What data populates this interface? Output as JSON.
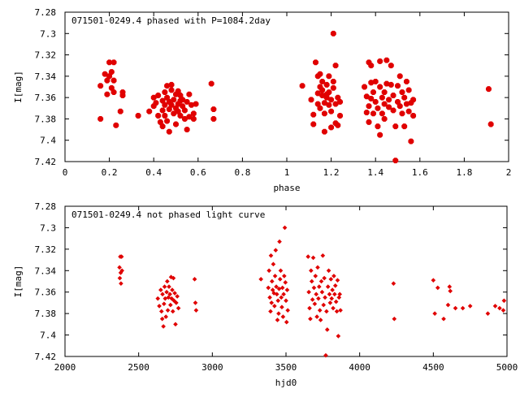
{
  "chart_data": [
    {
      "type": "scatter",
      "title": "071501-0249.4 phased with P=1084.2day",
      "xlabel": "phase",
      "ylabel": "I[mag]",
      "xlim": [
        0,
        2
      ],
      "ylim": [
        7.28,
        7.42
      ],
      "y_inverted": true,
      "x_ticks": [
        "0",
        "0.2",
        "0.4",
        "0.6",
        "0.8",
        "1",
        "1.2",
        "1.4",
        "1.6",
        "1.8",
        "2"
      ],
      "y_ticks": [
        "7.28",
        "7.3",
        "7.32",
        "7.34",
        "7.36",
        "7.38",
        "7.4",
        "7.42"
      ],
      "x_tick_values": [
        0,
        0.2,
        0.4,
        0.6,
        0.8,
        1,
        1.2,
        1.4,
        1.6,
        1.8,
        2
      ],
      "y_tick_values": [
        7.28,
        7.3,
        7.32,
        7.34,
        7.36,
        7.38,
        7.4,
        7.42
      ],
      "marker": "star",
      "color": "#e00000",
      "points": [
        [
          0.16,
          7.349
        ],
        [
          0.16,
          7.38
        ],
        [
          0.18,
          7.338
        ],
        [
          0.19,
          7.357
        ],
        [
          0.19,
          7.344
        ],
        [
          0.2,
          7.327
        ],
        [
          0.2,
          7.34
        ],
        [
          0.21,
          7.336
        ],
        [
          0.21,
          7.351
        ],
        [
          0.22,
          7.327
        ],
        [
          0.22,
          7.344
        ],
        [
          0.22,
          7.355
        ],
        [
          0.23,
          7.386
        ],
        [
          0.25,
          7.373
        ],
        [
          0.26,
          7.355
        ],
        [
          0.26,
          7.358
        ],
        [
          0.33,
          7.377
        ],
        [
          0.38,
          7.373
        ],
        [
          0.4,
          7.368
        ],
        [
          0.4,
          7.36
        ],
        [
          0.41,
          7.365
        ],
        [
          0.42,
          7.377
        ],
        [
          0.42,
          7.358
        ],
        [
          0.43,
          7.383
        ],
        [
          0.44,
          7.363
        ],
        [
          0.44,
          7.372
        ],
        [
          0.44,
          7.387
        ],
        [
          0.45,
          7.355
        ],
        [
          0.45,
          7.367
        ],
        [
          0.45,
          7.377
        ],
        [
          0.46,
          7.349
        ],
        [
          0.46,
          7.36
        ],
        [
          0.46,
          7.382
        ],
        [
          0.47,
          7.392
        ],
        [
          0.47,
          7.371
        ],
        [
          0.47,
          7.364
        ],
        [
          0.48,
          7.353
        ],
        [
          0.48,
          7.348
        ],
        [
          0.48,
          7.367
        ],
        [
          0.49,
          7.375
        ],
        [
          0.49,
          7.362
        ],
        [
          0.5,
          7.357
        ],
        [
          0.5,
          7.37
        ],
        [
          0.5,
          7.385
        ],
        [
          0.51,
          7.366
        ],
        [
          0.51,
          7.373
        ],
        [
          0.51,
          7.354
        ],
        [
          0.52,
          7.363
        ],
        [
          0.52,
          7.358
        ],
        [
          0.52,
          7.377
        ],
        [
          0.53,
          7.368
        ],
        [
          0.53,
          7.362
        ],
        [
          0.54,
          7.372
        ],
        [
          0.54,
          7.38
        ],
        [
          0.55,
          7.364
        ],
        [
          0.55,
          7.39
        ],
        [
          0.56,
          7.378
        ],
        [
          0.56,
          7.357
        ],
        [
          0.57,
          7.367
        ],
        [
          0.58,
          7.375
        ],
        [
          0.58,
          7.38
        ],
        [
          0.59,
          7.366
        ],
        [
          0.66,
          7.347
        ],
        [
          0.67,
          7.371
        ],
        [
          0.67,
          7.38
        ],
        [
          1.07,
          7.349
        ],
        [
          1.11,
          7.362
        ],
        [
          1.12,
          7.376
        ],
        [
          1.12,
          7.385
        ],
        [
          1.13,
          7.327
        ],
        [
          1.14,
          7.356
        ],
        [
          1.14,
          7.366
        ],
        [
          1.14,
          7.34
        ],
        [
          1.15,
          7.35
        ],
        [
          1.15,
          7.37
        ],
        [
          1.15,
          7.338
        ],
        [
          1.16,
          7.358
        ],
        [
          1.16,
          7.353
        ],
        [
          1.16,
          7.345
        ],
        [
          1.17,
          7.365
        ],
        [
          1.17,
          7.375
        ],
        [
          1.17,
          7.392
        ],
        [
          1.18,
          7.36
        ],
        [
          1.18,
          7.348
        ],
        [
          1.18,
          7.357
        ],
        [
          1.19,
          7.367
        ],
        [
          1.19,
          7.34
        ],
        [
          1.19,
          7.355
        ],
        [
          1.2,
          7.373
        ],
        [
          1.2,
          7.362
        ],
        [
          1.2,
          7.388
        ],
        [
          1.21,
          7.345
        ],
        [
          1.21,
          7.351
        ],
        [
          1.21,
          7.3
        ],
        [
          1.22,
          7.33
        ],
        [
          1.22,
          7.366
        ],
        [
          1.22,
          7.384
        ],
        [
          1.23,
          7.36
        ],
        [
          1.23,
          7.386
        ],
        [
          1.24,
          7.377
        ],
        [
          1.24,
          7.364
        ],
        [
          1.35,
          7.35
        ],
        [
          1.36,
          7.359
        ],
        [
          1.36,
          7.374
        ],
        [
          1.37,
          7.327
        ],
        [
          1.37,
          7.368
        ],
        [
          1.37,
          7.383
        ],
        [
          1.38,
          7.33
        ],
        [
          1.38,
          7.346
        ],
        [
          1.38,
          7.361
        ],
        [
          1.39,
          7.355
        ],
        [
          1.39,
          7.375
        ],
        [
          1.4,
          7.364
        ],
        [
          1.4,
          7.345
        ],
        [
          1.41,
          7.37
        ],
        [
          1.41,
          7.387
        ],
        [
          1.42,
          7.35
        ],
        [
          1.42,
          7.326
        ],
        [
          1.42,
          7.395
        ],
        [
          1.43,
          7.36
        ],
        [
          1.43,
          7.375
        ],
        [
          1.44,
          7.366
        ],
        [
          1.44,
          7.355
        ],
        [
          1.44,
          7.38
        ],
        [
          1.45,
          7.347
        ],
        [
          1.45,
          7.325
        ],
        [
          1.46,
          7.362
        ],
        [
          1.46,
          7.369
        ],
        [
          1.47,
          7.348
        ],
        [
          1.47,
          7.33
        ],
        [
          1.48,
          7.372
        ],
        [
          1.48,
          7.358
        ],
        [
          1.49,
          7.419
        ],
        [
          1.49,
          7.387
        ],
        [
          1.5,
          7.364
        ],
        [
          1.5,
          7.349
        ],
        [
          1.51,
          7.368
        ],
        [
          1.51,
          7.34
        ],
        [
          1.52,
          7.355
        ],
        [
          1.52,
          7.375
        ],
        [
          1.53,
          7.36
        ],
        [
          1.53,
          7.387
        ],
        [
          1.54,
          7.366
        ],
        [
          1.54,
          7.345
        ],
        [
          1.55,
          7.353
        ],
        [
          1.55,
          7.373
        ],
        [
          1.56,
          7.401
        ],
        [
          1.56,
          7.365
        ],
        [
          1.57,
          7.362
        ],
        [
          1.57,
          7.377
        ],
        [
          1.91,
          7.352
        ],
        [
          1.92,
          7.385
        ]
      ]
    },
    {
      "type": "scatter",
      "title": "071501-0249.4 not phased light curve",
      "xlabel": "hjd0",
      "ylabel": "I[mag]",
      "xlim": [
        2000,
        5000
      ],
      "ylim": [
        7.28,
        7.42
      ],
      "y_inverted": true,
      "x_ticks": [
        "2000",
        "2500",
        "3000",
        "3500",
        "4000",
        "4500",
        "5000"
      ],
      "y_ticks": [
        "7.28",
        "7.3",
        "7.32",
        "7.34",
        "7.36",
        "7.38",
        "7.4",
        "7.42"
      ],
      "x_tick_values": [
        2000,
        2500,
        3000,
        3500,
        4000,
        4500,
        5000
      ],
      "y_tick_values": [
        7.28,
        7.3,
        7.32,
        7.34,
        7.36,
        7.38,
        7.4,
        7.42
      ],
      "marker": "diamond",
      "color": "#e00000",
      "points": [
        [
          2370,
          7.337
        ],
        [
          2372,
          7.347
        ],
        [
          2375,
          7.327
        ],
        [
          2378,
          7.342
        ],
        [
          2380,
          7.352
        ],
        [
          2384,
          7.327
        ],
        [
          2387,
          7.34
        ],
        [
          2630,
          7.366
        ],
        [
          2640,
          7.373
        ],
        [
          2650,
          7.358
        ],
        [
          2655,
          7.378
        ],
        [
          2660,
          7.385
        ],
        [
          2662,
          7.362
        ],
        [
          2668,
          7.392
        ],
        [
          2672,
          7.371
        ],
        [
          2676,
          7.355
        ],
        [
          2680,
          7.366
        ],
        [
          2685,
          7.383
        ],
        [
          2690,
          7.36
        ],
        [
          2694,
          7.35
        ],
        [
          2698,
          7.377
        ],
        [
          2702,
          7.365
        ],
        [
          2706,
          7.355
        ],
        [
          2712,
          7.362
        ],
        [
          2716,
          7.372
        ],
        [
          2720,
          7.346
        ],
        [
          2724,
          7.366
        ],
        [
          2728,
          7.358
        ],
        [
          2732,
          7.378
        ],
        [
          2736,
          7.347
        ],
        [
          2740,
          7.368
        ],
        [
          2745,
          7.361
        ],
        [
          2750,
          7.39
        ],
        [
          2755,
          7.37
        ],
        [
          2762,
          7.364
        ],
        [
          2770,
          7.375
        ],
        [
          2880,
          7.348
        ],
        [
          2885,
          7.37
        ],
        [
          2890,
          7.377
        ],
        [
          3330,
          7.348
        ],
        [
          3380,
          7.356
        ],
        [
          3385,
          7.34
        ],
        [
          3390,
          7.365
        ],
        [
          3395,
          7.378
        ],
        [
          3398,
          7.326
        ],
        [
          3402,
          7.37
        ],
        [
          3405,
          7.35
        ],
        [
          3410,
          7.358
        ],
        [
          3414,
          7.334
        ],
        [
          3418,
          7.361
        ],
        [
          3422,
          7.373
        ],
        [
          3426,
          7.345
        ],
        [
          3430,
          7.321
        ],
        [
          3434,
          7.355
        ],
        [
          3438,
          7.362
        ],
        [
          3442,
          7.386
        ],
        [
          3446,
          7.368
        ],
        [
          3450,
          7.38
        ],
        [
          3453,
          7.357
        ],
        [
          3456,
          7.313
        ],
        [
          3460,
          7.348
        ],
        [
          3464,
          7.34
        ],
        [
          3468,
          7.365
        ],
        [
          3472,
          7.374
        ],
        [
          3476,
          7.356
        ],
        [
          3480,
          7.383
        ],
        [
          3484,
          7.362
        ],
        [
          3488,
          7.345
        ],
        [
          3492,
          7.3
        ],
        [
          3496,
          7.351
        ],
        [
          3500,
          7.368
        ],
        [
          3504,
          7.388
        ],
        [
          3508,
          7.358
        ],
        [
          3512,
          7.377
        ],
        [
          3650,
          7.327
        ],
        [
          3655,
          7.36
        ],
        [
          3660,
          7.375
        ],
        [
          3665,
          7.385
        ],
        [
          3670,
          7.34
        ],
        [
          3675,
          7.35
        ],
        [
          3680,
          7.367
        ],
        [
          3685,
          7.328
        ],
        [
          3690,
          7.356
        ],
        [
          3695,
          7.371
        ],
        [
          3700,
          7.345
        ],
        [
          3705,
          7.362
        ],
        [
          3710,
          7.383
        ],
        [
          3715,
          7.337
        ],
        [
          3720,
          7.366
        ],
        [
          3725,
          7.355
        ],
        [
          3730,
          7.377
        ],
        [
          3735,
          7.386
        ],
        [
          3740,
          7.35
        ],
        [
          3745,
          7.36
        ],
        [
          3750,
          7.326
        ],
        [
          3755,
          7.372
        ],
        [
          3760,
          7.347
        ],
        [
          3765,
          7.365
        ],
        [
          3770,
          7.419
        ],
        [
          3775,
          7.378
        ],
        [
          3780,
          7.395
        ],
        [
          3785,
          7.355
        ],
        [
          3790,
          7.34
        ],
        [
          3795,
          7.362
        ],
        [
          3800,
          7.37
        ],
        [
          3805,
          7.348
        ],
        [
          3810,
          7.366
        ],
        [
          3815,
          7.358
        ],
        [
          3820,
          7.375
        ],
        [
          3825,
          7.345
        ],
        [
          3830,
          7.362
        ],
        [
          3835,
          7.354
        ],
        [
          3840,
          7.369
        ],
        [
          3845,
          7.378
        ],
        [
          3850,
          7.349
        ],
        [
          3855,
          7.401
        ],
        [
          3860,
          7.365
        ],
        [
          3865,
          7.362
        ],
        [
          3870,
          7.377
        ],
        [
          4230,
          7.352
        ],
        [
          4235,
          7.385
        ],
        [
          4500,
          7.349
        ],
        [
          4510,
          7.38
        ],
        [
          4530,
          7.356
        ],
        [
          4570,
          7.385
        ],
        [
          4600,
          7.372
        ],
        [
          4610,
          7.355
        ],
        [
          4615,
          7.359
        ],
        [
          4650,
          7.375
        ],
        [
          4700,
          7.375
        ],
        [
          4750,
          7.373
        ],
        [
          4870,
          7.38
        ],
        [
          4920,
          7.373
        ],
        [
          4950,
          7.375
        ],
        [
          4975,
          7.377
        ],
        [
          4980,
          7.368
        ]
      ]
    }
  ]
}
